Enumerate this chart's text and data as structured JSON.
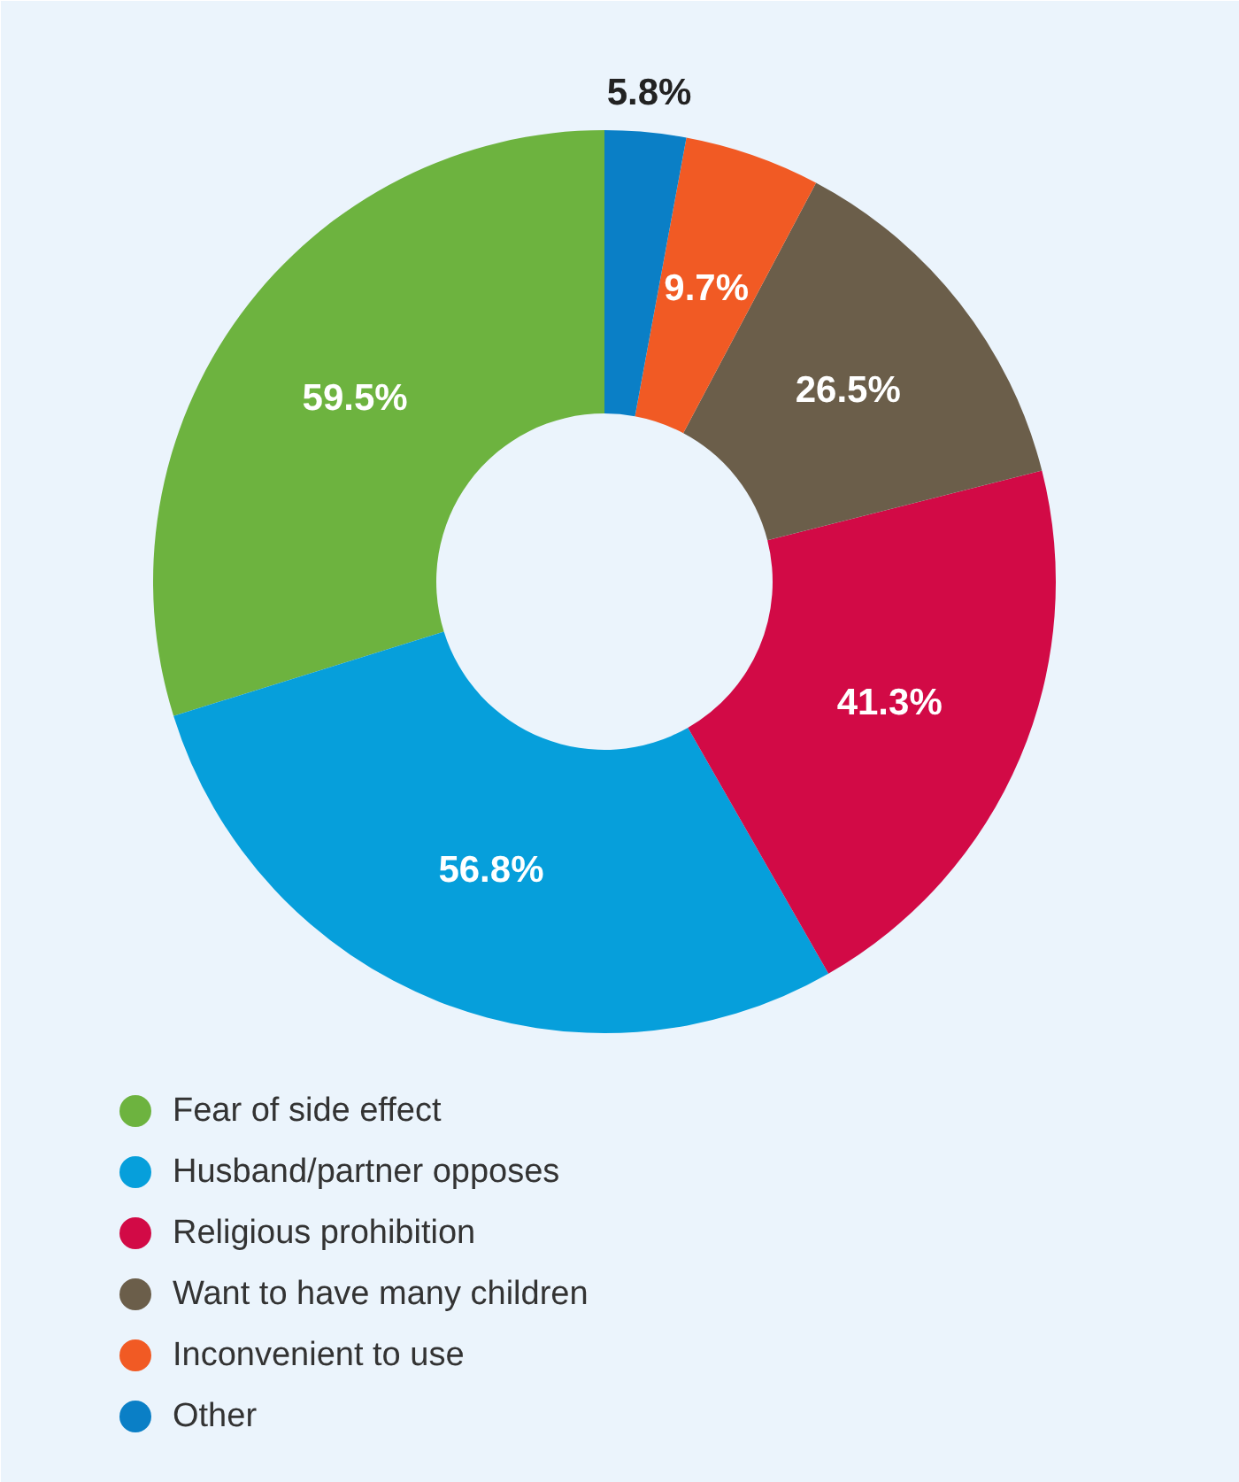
{
  "chart_data": {
    "type": "donut",
    "categories": [
      "Fear of side effect",
      "Husband/partner opposes",
      "Religious prohibition",
      "Want to have many children",
      "Inconvenient to use",
      "Other"
    ],
    "values": [
      59.5,
      56.8,
      41.3,
      26.5,
      9.7,
      5.8
    ],
    "colors": [
      "#6db33f",
      "#069fdb",
      "#d20a46",
      "#6b5e4a",
      "#f15a24",
      "#0a7fc6"
    ],
    "value_labels": [
      "59.5%",
      "56.8%",
      "41.3%",
      "26.5%",
      "9.7%",
      "5.8%"
    ],
    "legend": "bottom"
  }
}
